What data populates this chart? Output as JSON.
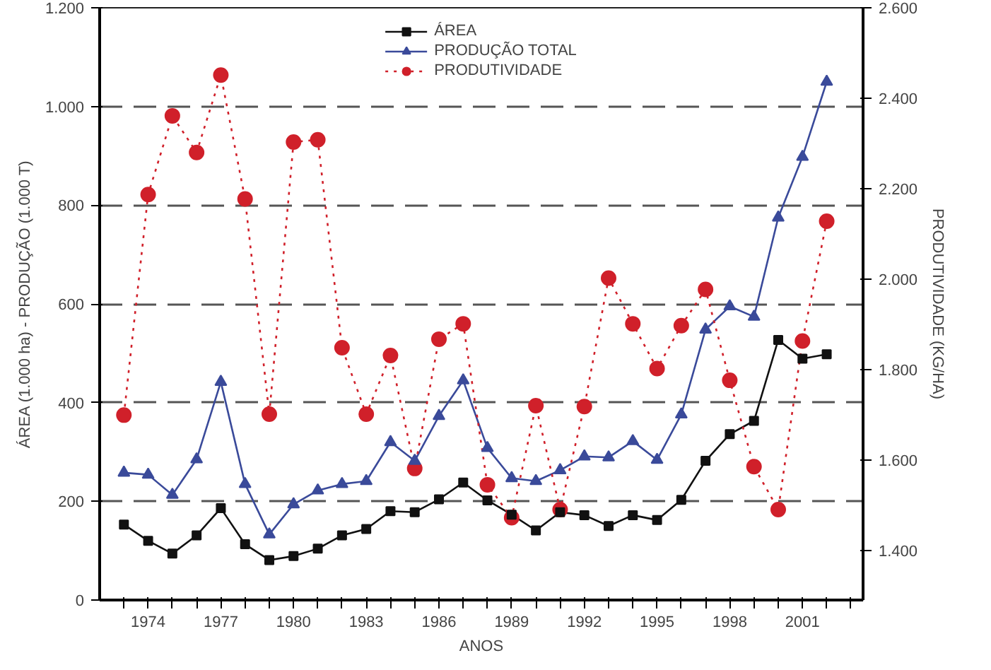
{
  "chart_data": {
    "type": "line",
    "xlabel": "ANOS",
    "ylabel": "ÁREA (1.000 ha) - PRODUÇÃO (1.000 T)",
    "y2label": "PRODUTIVIDADE (KG/HA)",
    "x": [
      1973,
      1974,
      1975,
      1976,
      1977,
      1978,
      1979,
      1980,
      1981,
      1982,
      1983,
      1984,
      1985,
      1986,
      1987,
      1988,
      1989,
      1990,
      1991,
      1992,
      1993,
      1994,
      1995,
      1996,
      1997,
      1998,
      1999,
      2000,
      2001,
      2002
    ],
    "series": [
      {
        "name": "ÁREA",
        "color": "#111111",
        "marker": "square",
        "line_style": "solid",
        "values": [
          153,
          120,
          94,
          131,
          186,
          113,
          81,
          89,
          104,
          131,
          144,
          180,
          178,
          204,
          238,
          202,
          173,
          141,
          178,
          172,
          150,
          172,
          162,
          203,
          282,
          336,
          363,
          527,
          489,
          498
        ]
      },
      {
        "name": "PRODUÇÃO TOTAL",
        "color": "#3a4a9a",
        "marker": "triangle",
        "line_style": "solid",
        "values": [
          258,
          254,
          213,
          285,
          442,
          235,
          133,
          194,
          222,
          235,
          241,
          320,
          282,
          373,
          445,
          308,
          247,
          241,
          263,
          291,
          289,
          322,
          284,
          376,
          548,
          595,
          574,
          775,
          898,
          1050
        ]
      },
      {
        "name": "PRODUTIVIDADE",
        "color": "#d0202a",
        "marker": "circle",
        "line_style": "dotted",
        "axis": "y2",
        "values": [
          1699,
          2187,
          2361,
          2280,
          2451,
          2177,
          1701,
          2303,
          2308,
          1848,
          1701,
          1831,
          1581,
          1867,
          1901,
          1545,
          1472,
          1720,
          1490,
          1718,
          2002,
          1901,
          1802,
          1897,
          1977,
          1776,
          1585,
          1490,
          1863,
          2128
        ]
      }
    ],
    "xlim": [
      1972,
      2003.5
    ],
    "xticks": [
      {
        "value": 1973,
        "label": null
      },
      1974,
      {
        "value": 1975,
        "label": null
      },
      {
        "value": 1976,
        "label": null
      },
      1977,
      {
        "value": 1978,
        "label": null
      },
      {
        "value": 1979,
        "label": null
      },
      1980,
      {
        "value": 1981,
        "label": null
      },
      {
        "value": 1982,
        "label": null
      },
      1983,
      {
        "value": 1984,
        "label": null
      },
      {
        "value": 1985,
        "label": null
      },
      1986,
      {
        "value": 1987,
        "label": null
      },
      {
        "value": 1988,
        "label": null
      },
      1989,
      {
        "value": 1990,
        "label": null
      },
      {
        "value": 1991,
        "label": null
      },
      1992,
      {
        "value": 1993,
        "label": null
      },
      {
        "value": 1994,
        "label": null
      },
      1995,
      {
        "value": 1996,
        "label": null
      },
      {
        "value": 1997,
        "label": null
      },
      1998,
      {
        "value": 1999,
        "label": null
      },
      {
        "value": 2000,
        "label": null
      },
      2001,
      {
        "value": 2002,
        "label": null
      },
      {
        "value": 2003,
        "label": null
      }
    ],
    "ylim": [
      0,
      1200
    ],
    "yticks": [
      0,
      200,
      400,
      600,
      800,
      {
        "value": 1000,
        "label": "1.000"
      },
      {
        "value": 1200,
        "label": "1.200"
      }
    ],
    "y2lim": [
      1290,
      2600
    ],
    "y2ticks": [
      {
        "value": 1400,
        "label": "1.400"
      },
      {
        "value": 1600,
        "label": "1.600"
      },
      {
        "value": 1800,
        "label": "1.800"
      },
      {
        "value": 2000,
        "label": "2.000"
      },
      {
        "value": 2200,
        "label": "2.200"
      },
      {
        "value": 2400,
        "label": "2.400"
      },
      {
        "value": 2600,
        "label": "2.600"
      }
    ],
    "grid": "y",
    "legend": "top"
  }
}
